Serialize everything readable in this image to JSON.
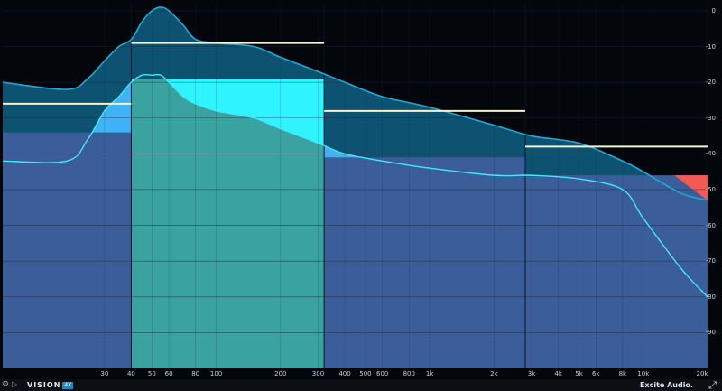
{
  "y_axis": {
    "min_db": -100,
    "max_db": 2,
    "ticks": [
      {
        "db": 0,
        "label": "0"
      },
      {
        "db": -10,
        "label": "-10"
      },
      {
        "db": -20,
        "label": "-20"
      },
      {
        "db": -30,
        "label": "-30"
      },
      {
        "db": -40,
        "label": "-40"
      },
      {
        "db": -50,
        "label": "-50"
      },
      {
        "db": -60,
        "label": "-60"
      },
      {
        "db": -70,
        "label": "-70"
      },
      {
        "db": -80,
        "label": "-80"
      },
      {
        "db": -90,
        "label": "-90"
      }
    ]
  },
  "x_axis": {
    "ticks": [
      {
        "hz": 30,
        "label": "30"
      },
      {
        "hz": 40,
        "label": "40"
      },
      {
        "hz": 50,
        "label": "50"
      },
      {
        "hz": 60,
        "label": "60"
      },
      {
        "hz": 80,
        "label": "80"
      },
      {
        "hz": 100,
        "label": "100"
      },
      {
        "hz": 200,
        "label": "200"
      },
      {
        "hz": 300,
        "label": "300"
      },
      {
        "hz": 400,
        "label": "400"
      },
      {
        "hz": 500,
        "label": "500"
      },
      {
        "hz": 600,
        "label": "600"
      },
      {
        "hz": 800,
        "label": "800"
      },
      {
        "hz": 1000,
        "label": "1k"
      },
      {
        "hz": 2000,
        "label": "2k"
      },
      {
        "hz": 3000,
        "label": "3k"
      },
      {
        "hz": 4000,
        "label": "4k"
      },
      {
        "hz": 5000,
        "label": "5k"
      },
      {
        "hz": 6000,
        "label": "6k"
      },
      {
        "hz": 8000,
        "label": "8k"
      },
      {
        "hz": 10000,
        "label": "10k"
      },
      {
        "hz": 20000,
        "label": "20k"
      }
    ]
  },
  "bands": [
    {
      "from_hz": 10,
      "to_hz": 40,
      "level_db": -34,
      "target_db": -26,
      "active": false
    },
    {
      "from_hz": 40,
      "to_hz": 320,
      "level_db": -19,
      "target_db": -9,
      "active": true
    },
    {
      "from_hz": 320,
      "to_hz": 2800,
      "level_db": -41,
      "target_db": -28,
      "active": false
    },
    {
      "from_hz": 2800,
      "to_hz": 20000,
      "level_db": -46,
      "target_db": -38,
      "active": false
    }
  ],
  "spectrum": {
    "peak": [
      [
        10,
        -20
      ],
      [
        20,
        -22
      ],
      [
        25,
        -19
      ],
      [
        30,
        -14
      ],
      [
        35,
        -10
      ],
      [
        40,
        -8
      ],
      [
        45,
        -3
      ],
      [
        50,
        0
      ],
      [
        55,
        1
      ],
      [
        60,
        0
      ],
      [
        70,
        -4
      ],
      [
        80,
        -8
      ],
      [
        100,
        -9
      ],
      [
        150,
        -10
      ],
      [
        200,
        -13
      ],
      [
        300,
        -17
      ],
      [
        400,
        -20
      ],
      [
        600,
        -24
      ],
      [
        1000,
        -27
      ],
      [
        2000,
        -32
      ],
      [
        3000,
        -35
      ],
      [
        5000,
        -37
      ],
      [
        8000,
        -42
      ],
      [
        10000,
        -45
      ],
      [
        15000,
        -51
      ],
      [
        20000,
        -53
      ]
    ],
    "average": [
      [
        10,
        -42
      ],
      [
        20,
        -42
      ],
      [
        25,
        -36
      ],
      [
        30,
        -28
      ],
      [
        35,
        -24
      ],
      [
        40,
        -20
      ],
      [
        45,
        -18
      ],
      [
        50,
        -18
      ],
      [
        55,
        -18
      ],
      [
        60,
        -20
      ],
      [
        70,
        -24
      ],
      [
        80,
        -26
      ],
      [
        100,
        -28
      ],
      [
        150,
        -30
      ],
      [
        200,
        -33
      ],
      [
        300,
        -37
      ],
      [
        400,
        -40
      ],
      [
        600,
        -42
      ],
      [
        1000,
        -44
      ],
      [
        2000,
        -46
      ],
      [
        3000,
        -46
      ],
      [
        5000,
        -47
      ],
      [
        8000,
        -50
      ],
      [
        10000,
        -58
      ],
      [
        15000,
        -72
      ],
      [
        20000,
        -80
      ]
    ]
  },
  "colors": {
    "background": "#03070b",
    "band_fill": "#3b5d9a",
    "band_active_fill": "#3aa3a0",
    "band_active_top": "#2ff4ff",
    "band_top_fill": "#3eb3f5",
    "peak_fill": "#0d5271",
    "peak_line": "#1fa9d6",
    "average_line": "#3fe8ff",
    "target_line": "#f4f2d0",
    "over_warning": "#f25a55",
    "grid": "#1c2733"
  },
  "footer": {
    "product": "VISION",
    "version": "4X",
    "brand": "Excite Audio.",
    "settings_icon": "gear-icon",
    "play_icon": "play-icon",
    "expand_icon": "expand-icon"
  }
}
